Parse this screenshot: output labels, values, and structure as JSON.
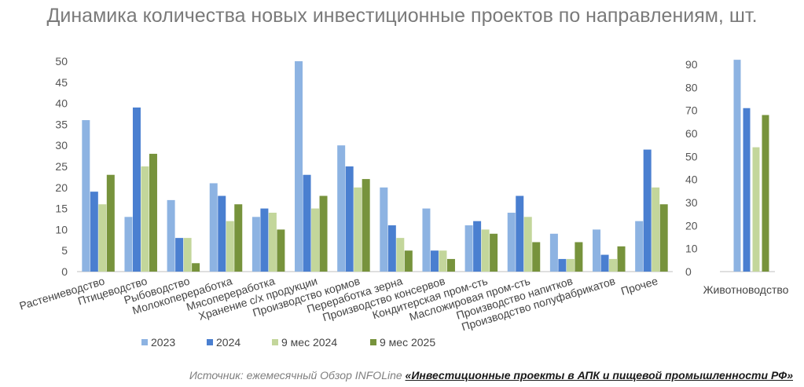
{
  "chart_data": [
    {
      "type": "bar",
      "title": "Динамика количества новых инвестиционные проектов по направлениям, шт.",
      "categories": [
        "Растениеводство",
        "Птицеводство",
        "Рыбоводство",
        "Молокопереработка",
        "Мясопереработка",
        "Хранение с/х продукции",
        "Производство кормов",
        "Переработка зерна",
        "Производство консервов",
        "Кондитерская пром-сть",
        "Масложировая пром-сть",
        "Производство напитков",
        "Производство полуфабрикатов",
        "Прочее"
      ],
      "series": [
        {
          "name": "2023",
          "values": [
            36,
            13,
            17,
            21,
            13,
            50,
            30,
            20,
            15,
            11,
            14,
            9,
            10,
            12
          ]
        },
        {
          "name": "2024",
          "values": [
            19,
            39,
            8,
            18,
            15,
            23,
            25,
            11,
            5,
            12,
            18,
            3,
            4,
            29
          ]
        },
        {
          "name": "9 мес 2024",
          "values": [
            16,
            25,
            8,
            12,
            14,
            15,
            20,
            8,
            5,
            10,
            13,
            3,
            3,
            20
          ]
        },
        {
          "name": "9 мес 2025",
          "values": [
            23,
            28,
            2,
            16,
            10,
            18,
            22,
            5,
            3,
            9,
            7,
            7,
            6,
            16
          ]
        }
      ],
      "ylim": [
        0,
        50
      ],
      "yticks": [
        0,
        5,
        10,
        15,
        20,
        25,
        30,
        35,
        40,
        45,
        50
      ],
      "grid": false,
      "legend": "bottom"
    },
    {
      "type": "bar",
      "categories": [
        "Животноводство"
      ],
      "series": [
        {
          "name": "2023",
          "values": [
            92
          ]
        },
        {
          "name": "2024",
          "values": [
            71
          ]
        },
        {
          "name": "9 мес 2024",
          "values": [
            54
          ]
        },
        {
          "name": "9 мес 2025",
          "values": [
            68
          ]
        }
      ],
      "ylim": [
        0,
        90
      ],
      "yticks": [
        0,
        10,
        20,
        30,
        40,
        50,
        60,
        70,
        80,
        90
      ],
      "grid": false
    }
  ],
  "colors": {
    "2023": "#8db3e2",
    "2024": "#4a7fd0",
    "9 мес 2024": "#c3d69b",
    "9 мес 2025": "#77933c",
    "axis": "#bfbfbf"
  },
  "source": {
    "prefix": "Источник: ежемесячный Обзор INFOLine ",
    "link": "«Инвестиционные проекты в АПК и пищевой промышленности РФ»"
  }
}
